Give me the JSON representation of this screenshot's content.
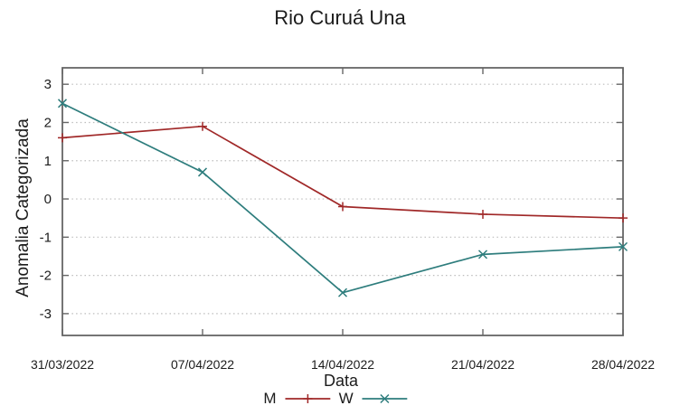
{
  "chart_data": {
    "type": "line",
    "title": "Rio Curuá Una",
    "xlabel": "Data",
    "ylabel": "Anomalia Categorizada",
    "categories": [
      "31/03/2022",
      "07/04/2022",
      "14/04/2022",
      "21/04/2022",
      "28/04/2022"
    ],
    "series": [
      {
        "name": "M",
        "marker": "plus",
        "color": "#a02828",
        "values": [
          1.6,
          1.9,
          -0.2,
          -0.4,
          -0.5
        ]
      },
      {
        "name": "W",
        "marker": "cross",
        "color": "#2e7d7d",
        "values": [
          2.5,
          0.7,
          -2.45,
          -1.45,
          -1.25
        ]
      }
    ],
    "yticks": [
      -3,
      -2,
      -1,
      0,
      1,
      2,
      3
    ],
    "ylim": [
      -3.57,
      3.43
    ],
    "grid": "horizontal-dotted",
    "legend_position": "bottom-center"
  },
  "colors": {
    "text": "#1c1c1c",
    "axis": "#666666",
    "grid": "#bdbdbd",
    "background": "#ffffff"
  }
}
